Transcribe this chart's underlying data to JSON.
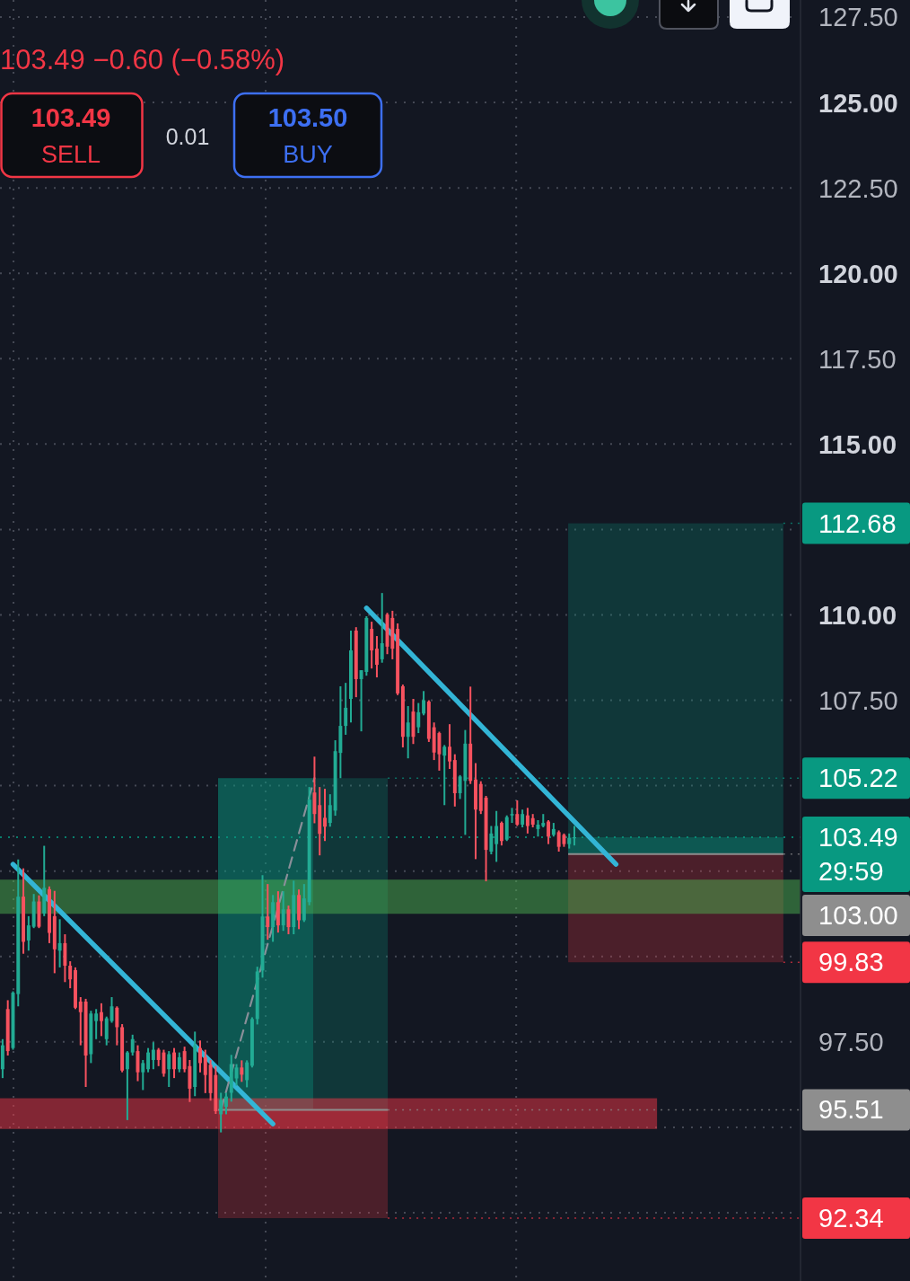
{
  "chart_data": {
    "type": "candlestick",
    "subtitle": "103.49 −0.60 (−0.58%)",
    "annotations": [
      "103.49",
      "SELL",
      "0.01",
      "103.50",
      "BUY",
      "29:59"
    ],
    "categories": [
      null,
      null,
      null,
      null,
      null,
      null,
      null,
      null,
      null,
      null,
      null,
      null,
      null,
      null,
      null,
      null,
      null,
      null,
      null,
      null,
      null,
      null,
      null,
      null,
      null,
      null,
      null,
      null,
      null,
      null,
      null,
      null,
      null,
      null,
      null,
      null,
      null,
      null,
      null,
      null,
      null,
      null,
      null,
      null,
      null,
      null,
      null,
      null,
      null,
      null,
      null,
      null,
      null,
      null,
      null,
      null,
      null,
      null,
      null,
      null,
      null,
      null,
      null,
      null,
      null,
      null,
      null,
      null,
      null,
      null,
      null,
      null,
      null,
      null,
      null,
      null,
      null,
      null,
      null,
      null,
      null,
      null,
      null,
      null,
      null,
      null,
      null,
      null,
      null,
      null,
      null,
      null,
      null,
      null,
      null,
      null,
      null,
      null,
      null,
      null,
      null,
      null,
      null,
      null,
      null,
      null,
      null,
      null,
      null,
      null,
      null,
      null,
      null,
      null,
      null,
      null,
      null,
      null,
      null,
      null,
      null,
      null,
      null,
      null,
      null,
      null,
      null,
      null,
      null,
      null,
      null,
      null,
      null,
      null,
      null,
      null,
      null,
      null,
      null,
      null,
      null,
      null,
      null,
      null,
      null,
      null,
      null,
      null,
      null,
      null,
      null,
      null,
      null,
      null
    ],
    "ohlc": [
      [
        96.7,
        97.58,
        96.44,
        97.4
      ],
      [
        98.46,
        98.72,
        97.1,
        97.23
      ],
      [
        97.32,
        98.98,
        97.27,
        98.94
      ],
      [
        98.9,
        102.84,
        98.54,
        101.75
      ],
      [
        101.75,
        102.58,
        100.08,
        100.43
      ],
      [
        100.47,
        101.18,
        100.17,
        100.91
      ],
      [
        100.87,
        101.83,
        100.83,
        101.61
      ],
      [
        101.61,
        101.79,
        100.83,
        100.87
      ],
      [
        101.26,
        103.24,
        101.18,
        102.01
      ],
      [
        101.97,
        102.05,
        100.39,
        100.69
      ],
      [
        101.18,
        101.92,
        99.51,
        100.21
      ],
      [
        100.17,
        101.09,
        99.68,
        100.39
      ],
      [
        100.39,
        100.65,
        99.25,
        99.73
      ],
      [
        99.73,
        99.86,
        99.07,
        99.33
      ],
      [
        99.6,
        99.68,
        98.46,
        98.5
      ],
      [
        98.68,
        98.81,
        97.4,
        98.37
      ],
      [
        98.68,
        98.76,
        96.18,
        97.1
      ],
      [
        97.14,
        98.41,
        96.88,
        98.33
      ],
      [
        98.11,
        98.46,
        97.58,
        98.33
      ],
      [
        98.37,
        98.63,
        97.67,
        98.11
      ],
      [
        97.58,
        98.24,
        97.4,
        98.19
      ],
      [
        98.11,
        98.81,
        98.06,
        98.54
      ],
      [
        98.5,
        98.54,
        97.4,
        97.93
      ],
      [
        97.93,
        98.02,
        96.61,
        96.66
      ],
      [
        96.7,
        97.23,
        95.21,
        97.19
      ],
      [
        97.19,
        97.71,
        97.1,
        97.58
      ],
      [
        97.23,
        97.4,
        96.35,
        96.61
      ],
      [
        96.61,
        96.97,
        96.09,
        96.88
      ],
      [
        96.7,
        97.32,
        96.61,
        97.19
      ],
      [
        96.97,
        97.49,
        96.7,
        97.27
      ],
      [
        97.27,
        97.32,
        96.79,
        96.97
      ],
      [
        97.19,
        97.27,
        96.48,
        96.57
      ],
      [
        96.7,
        97.23,
        96.18,
        97.14
      ],
      [
        97.19,
        97.32,
        96.44,
        96.7
      ],
      [
        96.7,
        97.19,
        96.61,
        97.05
      ],
      [
        97.23,
        97.36,
        96.61,
        96.7
      ],
      [
        96.79,
        96.97,
        95.74,
        96.13
      ],
      [
        96.18,
        97.8,
        95.91,
        97.4
      ],
      [
        97.32,
        97.54,
        96.61,
        96.88
      ],
      [
        97.05,
        97.27,
        96.0,
        96.53
      ],
      [
        96.83,
        96.97,
        95.78,
        96.0
      ],
      [
        96.53,
        96.79,
        95.39,
        95.47
      ],
      [
        95.38,
        96.01,
        94.85,
        95.8
      ],
      [
        95.6,
        96.01,
        95.38,
        95.9
      ],
      [
        96.01,
        97.12,
        95.75,
        96.85
      ],
      [
        96.43,
        96.85,
        96.22,
        96.75
      ],
      [
        96.75,
        96.96,
        96.33,
        96.54
      ],
      [
        96.38,
        96.96,
        96.17,
        96.9
      ],
      [
        96.8,
        98.22,
        96.75,
        98.17
      ],
      [
        98.17,
        99.7,
        98.01,
        99.56
      ],
      [
        99.59,
        102.38,
        99.38,
        101.17
      ],
      [
        101.17,
        102.12,
        100.49,
        100.86
      ],
      [
        100.86,
        101.8,
        100.43,
        101.59
      ],
      [
        101.59,
        101.91,
        100.7,
        100.91
      ],
      [
        100.91,
        101.91,
        100.75,
        101.38
      ],
      [
        101.38,
        101.49,
        100.65,
        100.86
      ],
      [
        100.86,
        102.22,
        100.65,
        101.8
      ],
      [
        101.8,
        101.96,
        100.8,
        101.06
      ],
      [
        101.06,
        102.12,
        101.01,
        101.7
      ],
      [
        101.59,
        104.96,
        101.5,
        104.59
      ],
      [
        104.8,
        105.85,
        103.9,
        104.17
      ],
      [
        104.43,
        104.96,
        102.96,
        103.59
      ],
      [
        104.06,
        104.91,
        103.38,
        103.8
      ],
      [
        103.91,
        104.75,
        103.8,
        104.43
      ],
      [
        104.27,
        106.33,
        104.12,
        106.01
      ],
      [
        105.96,
        107.91,
        105.22,
        106.75
      ],
      [
        106.75,
        108.01,
        106.49,
        107.28
      ],
      [
        107.54,
        109.54,
        106.85,
        108.96
      ],
      [
        109.54,
        109.64,
        107.59,
        108.12
      ],
      [
        108.12,
        108.38,
        106.59,
        108.38
      ],
      [
        108.33,
        109.96,
        108.22,
        109.91
      ],
      [
        109.59,
        109.8,
        108.43,
        108.96
      ],
      [
        109.01,
        109.38,
        108.17,
        108.54
      ],
      [
        108.7,
        110.64,
        108.6,
        109.17
      ],
      [
        110.01,
        110.06,
        108.85,
        109.07
      ],
      [
        109.91,
        110.12,
        108.7,
        109.01
      ],
      [
        109.59,
        109.75,
        107.65,
        107.7
      ],
      [
        107.91,
        107.96,
        106.12,
        106.43
      ],
      [
        106.43,
        107.33,
        105.8,
        106.85
      ],
      [
        107.17,
        107.54,
        106.22,
        106.43
      ],
      [
        106.71,
        107.42,
        106.54,
        107.15
      ],
      [
        107.11,
        107.77,
        107.06,
        107.5
      ],
      [
        107.46,
        107.5,
        106.28,
        106.37
      ],
      [
        106.71,
        106.85,
        105.75,
        105.97
      ],
      [
        106.54,
        106.58,
        105.44,
        105.92
      ],
      [
        105.88,
        106.19,
        104.43,
        106.14
      ],
      [
        106.14,
        106.8,
        105.49,
        105.71
      ],
      [
        105.75,
        105.92,
        104.39,
        104.78
      ],
      [
        104.78,
        105.31,
        104.61,
        105.27
      ],
      [
        105.14,
        106.63,
        103.56,
        106.23
      ],
      [
        106.23,
        107.9,
        105.05,
        105.14
      ],
      [
        105.18,
        105.66,
        102.85,
        104.3
      ],
      [
        105.05,
        105.13,
        104.17,
        104.26
      ],
      [
        104.65,
        104.7,
        102.2,
        103.12
      ],
      [
        103.07,
        103.82,
        102.99,
        103.6
      ],
      [
        103.29,
        104.26,
        102.77,
        103.82
      ],
      [
        103.91,
        103.95,
        103.25,
        103.38
      ],
      [
        103.42,
        104.13,
        103.38,
        104.08
      ],
      [
        104.13,
        104.35,
        103.91,
        104.17
      ],
      [
        104.17,
        104.57,
        103.82,
        103.86
      ],
      [
        103.86,
        104.3,
        103.78,
        104.17
      ],
      [
        104.13,
        104.35,
        103.6,
        103.82
      ],
      [
        104.05,
        104.17,
        103.78,
        103.86
      ],
      [
        103.73,
        103.99,
        103.51,
        103.86
      ],
      [
        103.82,
        104.17,
        103.78,
        103.91
      ],
      [
        103.95,
        103.99,
        103.29,
        103.51
      ],
      [
        103.56,
        103.91,
        103.51,
        103.73
      ],
      [
        103.64,
        103.69,
        103.07,
        103.21
      ],
      [
        103.56,
        103.6,
        103.21,
        103.29
      ],
      [
        103.29,
        103.6,
        103.16,
        103.47
      ],
      [
        103.47,
        103.82,
        103.25,
        103.49
      ],
      null,
      null,
      null,
      null,
      null,
      null,
      null,
      null,
      null,
      null,
      null,
      null,
      null,
      null,
      null,
      null,
      null,
      null,
      null,
      null,
      null,
      null,
      null,
      null,
      null,
      null,
      null,
      null,
      null,
      null,
      null,
      null,
      null,
      null,
      null,
      null,
      null,
      null,
      null,
      null,
      null,
      null,
      null
    ],
    "series": [
      {
        "type": "line",
        "color": "#33b5d6",
        "values": [
          null,
          null,
          102.7,
          null,
          null,
          null,
          null,
          null,
          null,
          null,
          null,
          null,
          null,
          null,
          null,
          null,
          null,
          null,
          null,
          null,
          null,
          null,
          null,
          null,
          null,
          null,
          null,
          null,
          null,
          null,
          null,
          null,
          null,
          null,
          null,
          null,
          null,
          null,
          null,
          null,
          null,
          null,
          null,
          null,
          null,
          null,
          null,
          null,
          null,
          null,
          null,
          null,
          95.1,
          null,
          null,
          null,
          null,
          null,
          null,
          null,
          null,
          null,
          null,
          null,
          null,
          null,
          null,
          null,
          null,
          null,
          null,
          null,
          null,
          null,
          null,
          null,
          null,
          null,
          null,
          null,
          null,
          null,
          null,
          null,
          null,
          null,
          null,
          null,
          null,
          null,
          null,
          null,
          null,
          null,
          null,
          null,
          null,
          null,
          null,
          null,
          null,
          null,
          null,
          null,
          null,
          null,
          null,
          null,
          null,
          null,
          null,
          null,
          null,
          null,
          null,
          null,
          null,
          null,
          null,
          null,
          null,
          null,
          null,
          null,
          null,
          null,
          null,
          null,
          null,
          null,
          null,
          null,
          null,
          null,
          null,
          null,
          null,
          null,
          null,
          null,
          null,
          null,
          null,
          null,
          null,
          null,
          null,
          null,
          null,
          null,
          null,
          null,
          null,
          null
        ]
      },
      {
        "type": "line",
        "color": "#33b5d6",
        "values": [
          null,
          null,
          null,
          null,
          null,
          null,
          null,
          null,
          null,
          null,
          null,
          null,
          null,
          null,
          null,
          null,
          null,
          null,
          null,
          null,
          null,
          null,
          null,
          null,
          null,
          null,
          null,
          null,
          null,
          null,
          null,
          null,
          null,
          null,
          null,
          null,
          null,
          null,
          null,
          null,
          null,
          null,
          null,
          null,
          null,
          null,
          null,
          null,
          null,
          null,
          null,
          null,
          null,
          null,
          null,
          null,
          null,
          null,
          null,
          null,
          null,
          null,
          null,
          null,
          null,
          null,
          null,
          null,
          null,
          null,
          110.2,
          null,
          null,
          null,
          null,
          null,
          null,
          null,
          null,
          null,
          null,
          null,
          null,
          null,
          null,
          null,
          null,
          null,
          null,
          null,
          null,
          null,
          null,
          null,
          null,
          null,
          null,
          null,
          null,
          null,
          null,
          null,
          null,
          null,
          null,
          null,
          null,
          null,
          null,
          null,
          null,
          null,
          null,
          null,
          null,
          null,
          null,
          null,
          102.7,
          null,
          null,
          null,
          null,
          null,
          null,
          null,
          null,
          null,
          null,
          null,
          null,
          null,
          null,
          null,
          null,
          null,
          null,
          null,
          null,
          null,
          null,
          null,
          null,
          null,
          null,
          null,
          null,
          null,
          null,
          null,
          null,
          null,
          null,
          null
        ]
      },
      {
        "type": "line",
        "color": "#8a8f99",
        "line_style": "dashed",
        "values": [
          null,
          null,
          null,
          null,
          null,
          null,
          null,
          null,
          null,
          null,
          null,
          null,
          null,
          null,
          null,
          null,
          null,
          null,
          null,
          null,
          null,
          null,
          null,
          null,
          null,
          null,
          null,
          null,
          null,
          null,
          null,
          null,
          null,
          null,
          null,
          null,
          null,
          null,
          null,
          null,
          null,
          null,
          95.51,
          null,
          null,
          null,
          null,
          null,
          null,
          null,
          null,
          null,
          null,
          null,
          null,
          null,
          null,
          null,
          null,
          null,
          105.22,
          null,
          null,
          null,
          null,
          null,
          null,
          null,
          null,
          null,
          null,
          null,
          null,
          null,
          null,
          null,
          null,
          null,
          null,
          null,
          null,
          null,
          null,
          null,
          null,
          null,
          null,
          null,
          null,
          null,
          null,
          null,
          null,
          null,
          null,
          null,
          null,
          null,
          null,
          null,
          null,
          null,
          null,
          null,
          null,
          null,
          null,
          null,
          null,
          null,
          null,
          null,
          null,
          null,
          null,
          null,
          null,
          null,
          null,
          null,
          null,
          null,
          null,
          null,
          null,
          null,
          null,
          null,
          null,
          null,
          null,
          null,
          null,
          null,
          null,
          null,
          null,
          null,
          null,
          null,
          null,
          null,
          null,
          null,
          null,
          null,
          null,
          null,
          null,
          null,
          null,
          null,
          null,
          null
        ]
      }
    ],
    "ylim": [
      90.5,
      128.0
    ],
    "yticks": [
      {
        "value": 127.5,
        "label": "127.50"
      },
      {
        "value": 125,
        "label": "125.00"
      },
      {
        "value": 122.5,
        "label": "122.50"
      },
      {
        "value": 120,
        "label": "120.00"
      },
      {
        "value": 117.5,
        "label": "117.50"
      },
      {
        "value": 115,
        "label": "115.00"
      },
      {
        "value": 112.5,
        "label": null
      },
      {
        "value": 110,
        "label": "110.00"
      },
      {
        "value": 107.5,
        "label": "107.50"
      },
      {
        "value": 105,
        "label": null
      },
      {
        "value": 102.5,
        "label": null
      },
      {
        "value": 100,
        "label": null
      },
      {
        "value": 97.5,
        "label": "97.50"
      },
      {
        "value": 95,
        "label": null
      },
      {
        "value": 92.5,
        "label": null
      }
    ],
    "ref_lines": [
      {
        "axis": "y",
        "value": 103.49,
        "label": "103.49",
        "color": "#089981",
        "line_style": "dotted"
      },
      {
        "axis": "y",
        "value": 95.51,
        "label": "95.51",
        "color": "#8e8e8e"
      },
      {
        "axis": "y",
        "value": 103.0,
        "label": "103.00",
        "color": "#8e8e8e"
      }
    ],
    "bands": [
      {
        "axis": "y",
        "from": 95.51,
        "to": 105.22,
        "label": "105.22",
        "color": "#089981"
      },
      {
        "axis": "y",
        "from": 95.51,
        "to": 92.34,
        "label": "92.34",
        "color": "#f23645"
      },
      {
        "axis": "y",
        "from": 103.0,
        "to": 112.68,
        "label": "112.68",
        "color": "#089981"
      },
      {
        "axis": "y",
        "from": 103.0,
        "to": 99.83,
        "label": "99.83",
        "color": "#f23645"
      },
      {
        "axis": "y",
        "from": 101.25,
        "to": 102.25,
        "color": "#4caf50"
      },
      {
        "axis": "y",
        "from": 94.95,
        "to": 95.85,
        "color": "#f23645"
      }
    ],
    "grid": true,
    "tick_labels": "y"
  }
}
